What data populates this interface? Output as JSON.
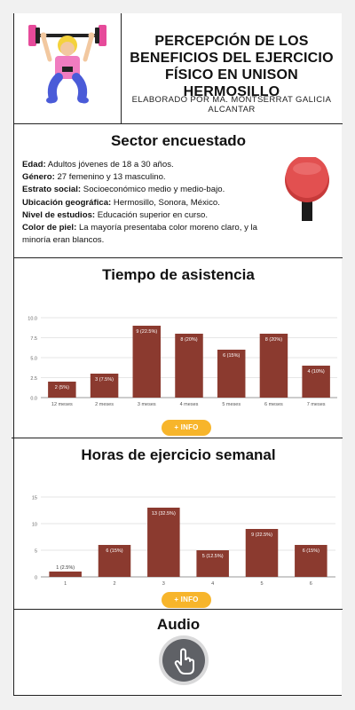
{
  "header": {
    "title_lines": [
      "PERCEPCIÓN DE LOS",
      "BENEFICIOS DEL EJERCICIO",
      "FÍSICO EN UNISON HERMOSILLO"
    ],
    "author": "ELABORADO POR MA. MONTSERRAT GALICIA ALCANTAR"
  },
  "sector": {
    "title": "Sector encuestado",
    "items": [
      {
        "label": "Edad:",
        "value": " Adultos jóvenes de 18 a 30 años."
      },
      {
        "label": "Género:",
        "value": " 27 femenino y 13 masculino."
      },
      {
        "label": "Estrato social:",
        "value": " Socioeconómico medio y medio-bajo."
      },
      {
        "label": "Ubicación geográfica:",
        "value": " Hermosillo, Sonora, México."
      },
      {
        "label": "Nivel de estudios:",
        "value": " Educación superior en curso."
      },
      {
        "label": "Color de piel:",
        "value": " La mayoría presentaba color moreno claro, y la minoría eran blancos."
      }
    ]
  },
  "time_section": {
    "title": "Tiempo de asistencia",
    "info_label": "+ INFO"
  },
  "hours_section": {
    "title": "Horas de ejercicio semanal",
    "info_label": "+ INFO"
  },
  "audio_section": {
    "title": "Audio"
  },
  "colors": {
    "bar": "#8b3a2f",
    "accent": "#f7b52b",
    "pin_red": "#e25050"
  },
  "icons": {
    "illustration": "weightlifter-illustration",
    "pin": "pushpin-icon",
    "audio": "hand-pointer-icon"
  },
  "chart_data": [
    {
      "type": "bar",
      "categories": [
        "12 meses",
        "2 meses",
        "3 meses",
        "4 meses",
        "5 meses",
        "6 meses",
        "7 meses"
      ],
      "values": [
        2,
        3,
        9,
        8,
        6,
        8,
        4
      ],
      "data_labels": [
        "2 (5%)",
        "3 (7.5%)",
        "9 (22.5%)",
        "8 (20%)",
        "6 (15%)",
        "8 (20%)",
        "4 (10%)"
      ],
      "ylim": [
        0,
        10
      ],
      "yticks": [
        "0.0",
        "2.5",
        "5.0",
        "7.5",
        "10.0"
      ],
      "ytick_values": [
        0,
        2.5,
        5,
        7.5,
        10
      ],
      "grid": true
    },
    {
      "type": "bar",
      "categories": [
        "1",
        "2",
        "3",
        "4",
        "5",
        "6"
      ],
      "values": [
        1,
        6,
        13,
        5,
        9,
        6
      ],
      "data_labels": [
        "1 (2.5%)",
        "6 (15%)",
        "13 (32.5%)",
        "5 (12.5%)",
        "9 (22.5%)",
        "6 (15%)"
      ],
      "ylim": [
        0,
        15
      ],
      "yticks": [
        "0",
        "5",
        "10",
        "15"
      ],
      "ytick_values": [
        0,
        5,
        10,
        15
      ],
      "grid": true
    }
  ]
}
